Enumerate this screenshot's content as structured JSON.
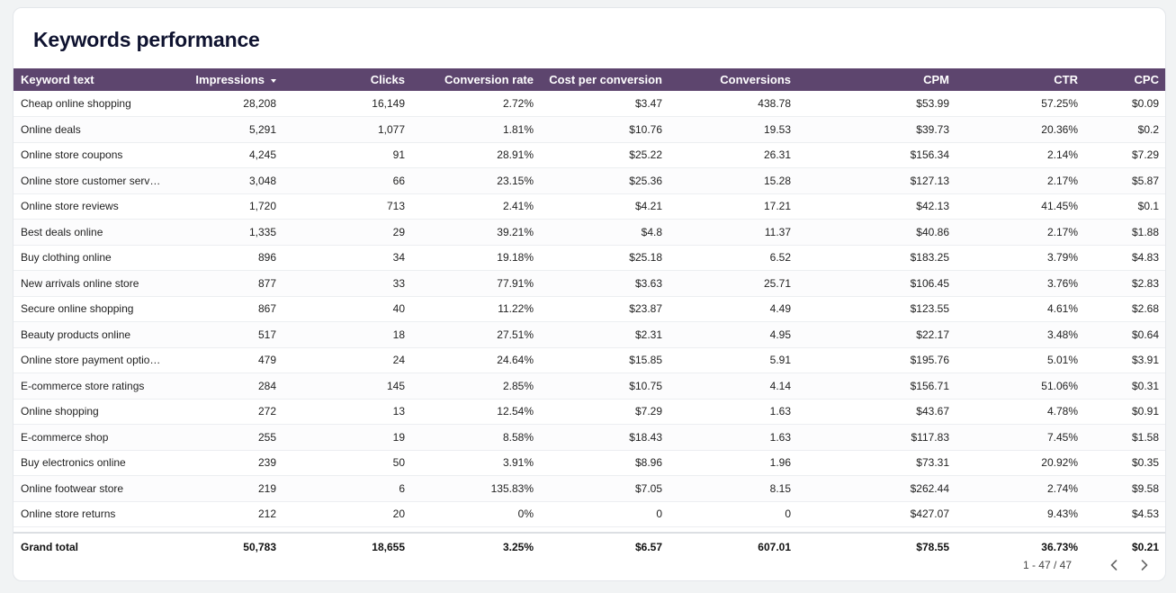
{
  "title": "Keywords performance",
  "table": {
    "columns": [
      "Keyword text",
      "Impressions",
      "Clicks",
      "Conversion rate",
      "Cost per conversion",
      "Conversions",
      "CPM",
      "CTR",
      "CPC"
    ],
    "sorted_column": "Impressions",
    "sort_icon": "sort-descending-icon",
    "rows": [
      [
        "Cheap online shopping",
        "28,208",
        "16,149",
        "2.72%",
        "$3.47",
        "438.78",
        "$53.99",
        "57.25%",
        "$0.09"
      ],
      [
        "Online deals",
        "5,291",
        "1,077",
        "1.81%",
        "$10.76",
        "19.53",
        "$39.73",
        "20.36%",
        "$0.2"
      ],
      [
        "Online store coupons",
        "4,245",
        "91",
        "28.91%",
        "$25.22",
        "26.31",
        "$156.34",
        "2.14%",
        "$7.29"
      ],
      [
        "Online store customer serv…",
        "3,048",
        "66",
        "23.15%",
        "$25.36",
        "15.28",
        "$127.13",
        "2.17%",
        "$5.87"
      ],
      [
        "Online store reviews",
        "1,720",
        "713",
        "2.41%",
        "$4.21",
        "17.21",
        "$42.13",
        "41.45%",
        "$0.1"
      ],
      [
        "Best deals online",
        "1,335",
        "29",
        "39.21%",
        "$4.8",
        "11.37",
        "$40.86",
        "2.17%",
        "$1.88"
      ],
      [
        "Buy clothing online",
        "896",
        "34",
        "19.18%",
        "$25.18",
        "6.52",
        "$183.25",
        "3.79%",
        "$4.83"
      ],
      [
        "New arrivals online store",
        "877",
        "33",
        "77.91%",
        "$3.63",
        "25.71",
        "$106.45",
        "3.76%",
        "$2.83"
      ],
      [
        "Secure online shopping",
        "867",
        "40",
        "11.22%",
        "$23.87",
        "4.49",
        "$123.55",
        "4.61%",
        "$2.68"
      ],
      [
        "Beauty products online",
        "517",
        "18",
        "27.51%",
        "$2.31",
        "4.95",
        "$22.17",
        "3.48%",
        "$0.64"
      ],
      [
        "Online store payment optio…",
        "479",
        "24",
        "24.64%",
        "$15.85",
        "5.91",
        "$195.76",
        "5.01%",
        "$3.91"
      ],
      [
        "E-commerce store ratings",
        "284",
        "145",
        "2.85%",
        "$10.75",
        "4.14",
        "$156.71",
        "51.06%",
        "$0.31"
      ],
      [
        "Online shopping",
        "272",
        "13",
        "12.54%",
        "$7.29",
        "1.63",
        "$43.67",
        "4.78%",
        "$0.91"
      ],
      [
        "E-commerce shop",
        "255",
        "19",
        "8.58%",
        "$18.43",
        "1.63",
        "$117.83",
        "7.45%",
        "$1.58"
      ],
      [
        "Buy electronics online",
        "239",
        "50",
        "3.91%",
        "$8.96",
        "1.96",
        "$73.31",
        "20.92%",
        "$0.35"
      ],
      [
        "Online footwear store",
        "219",
        "6",
        "135.83%",
        "$7.05",
        "8.15",
        "$262.44",
        "2.74%",
        "$9.58"
      ],
      [
        "Online store returns",
        "212",
        "20",
        "0%",
        "0",
        "0",
        "$427.07",
        "9.43%",
        "$4.53"
      ]
    ],
    "grand_total": [
      "Grand total",
      "50,783",
      "18,655",
      "3.25%",
      "$6.57",
      "607.01",
      "$78.55",
      "36.73%",
      "$0.21"
    ]
  },
  "pagination": {
    "range": "1 - 47 / 47",
    "prev_icon": "chevron-left-icon",
    "next_icon": "chevron-right-icon"
  },
  "colors": {
    "header_bg": "#5d456e",
    "header_text": "#ffffff",
    "title": "#0f1330"
  }
}
